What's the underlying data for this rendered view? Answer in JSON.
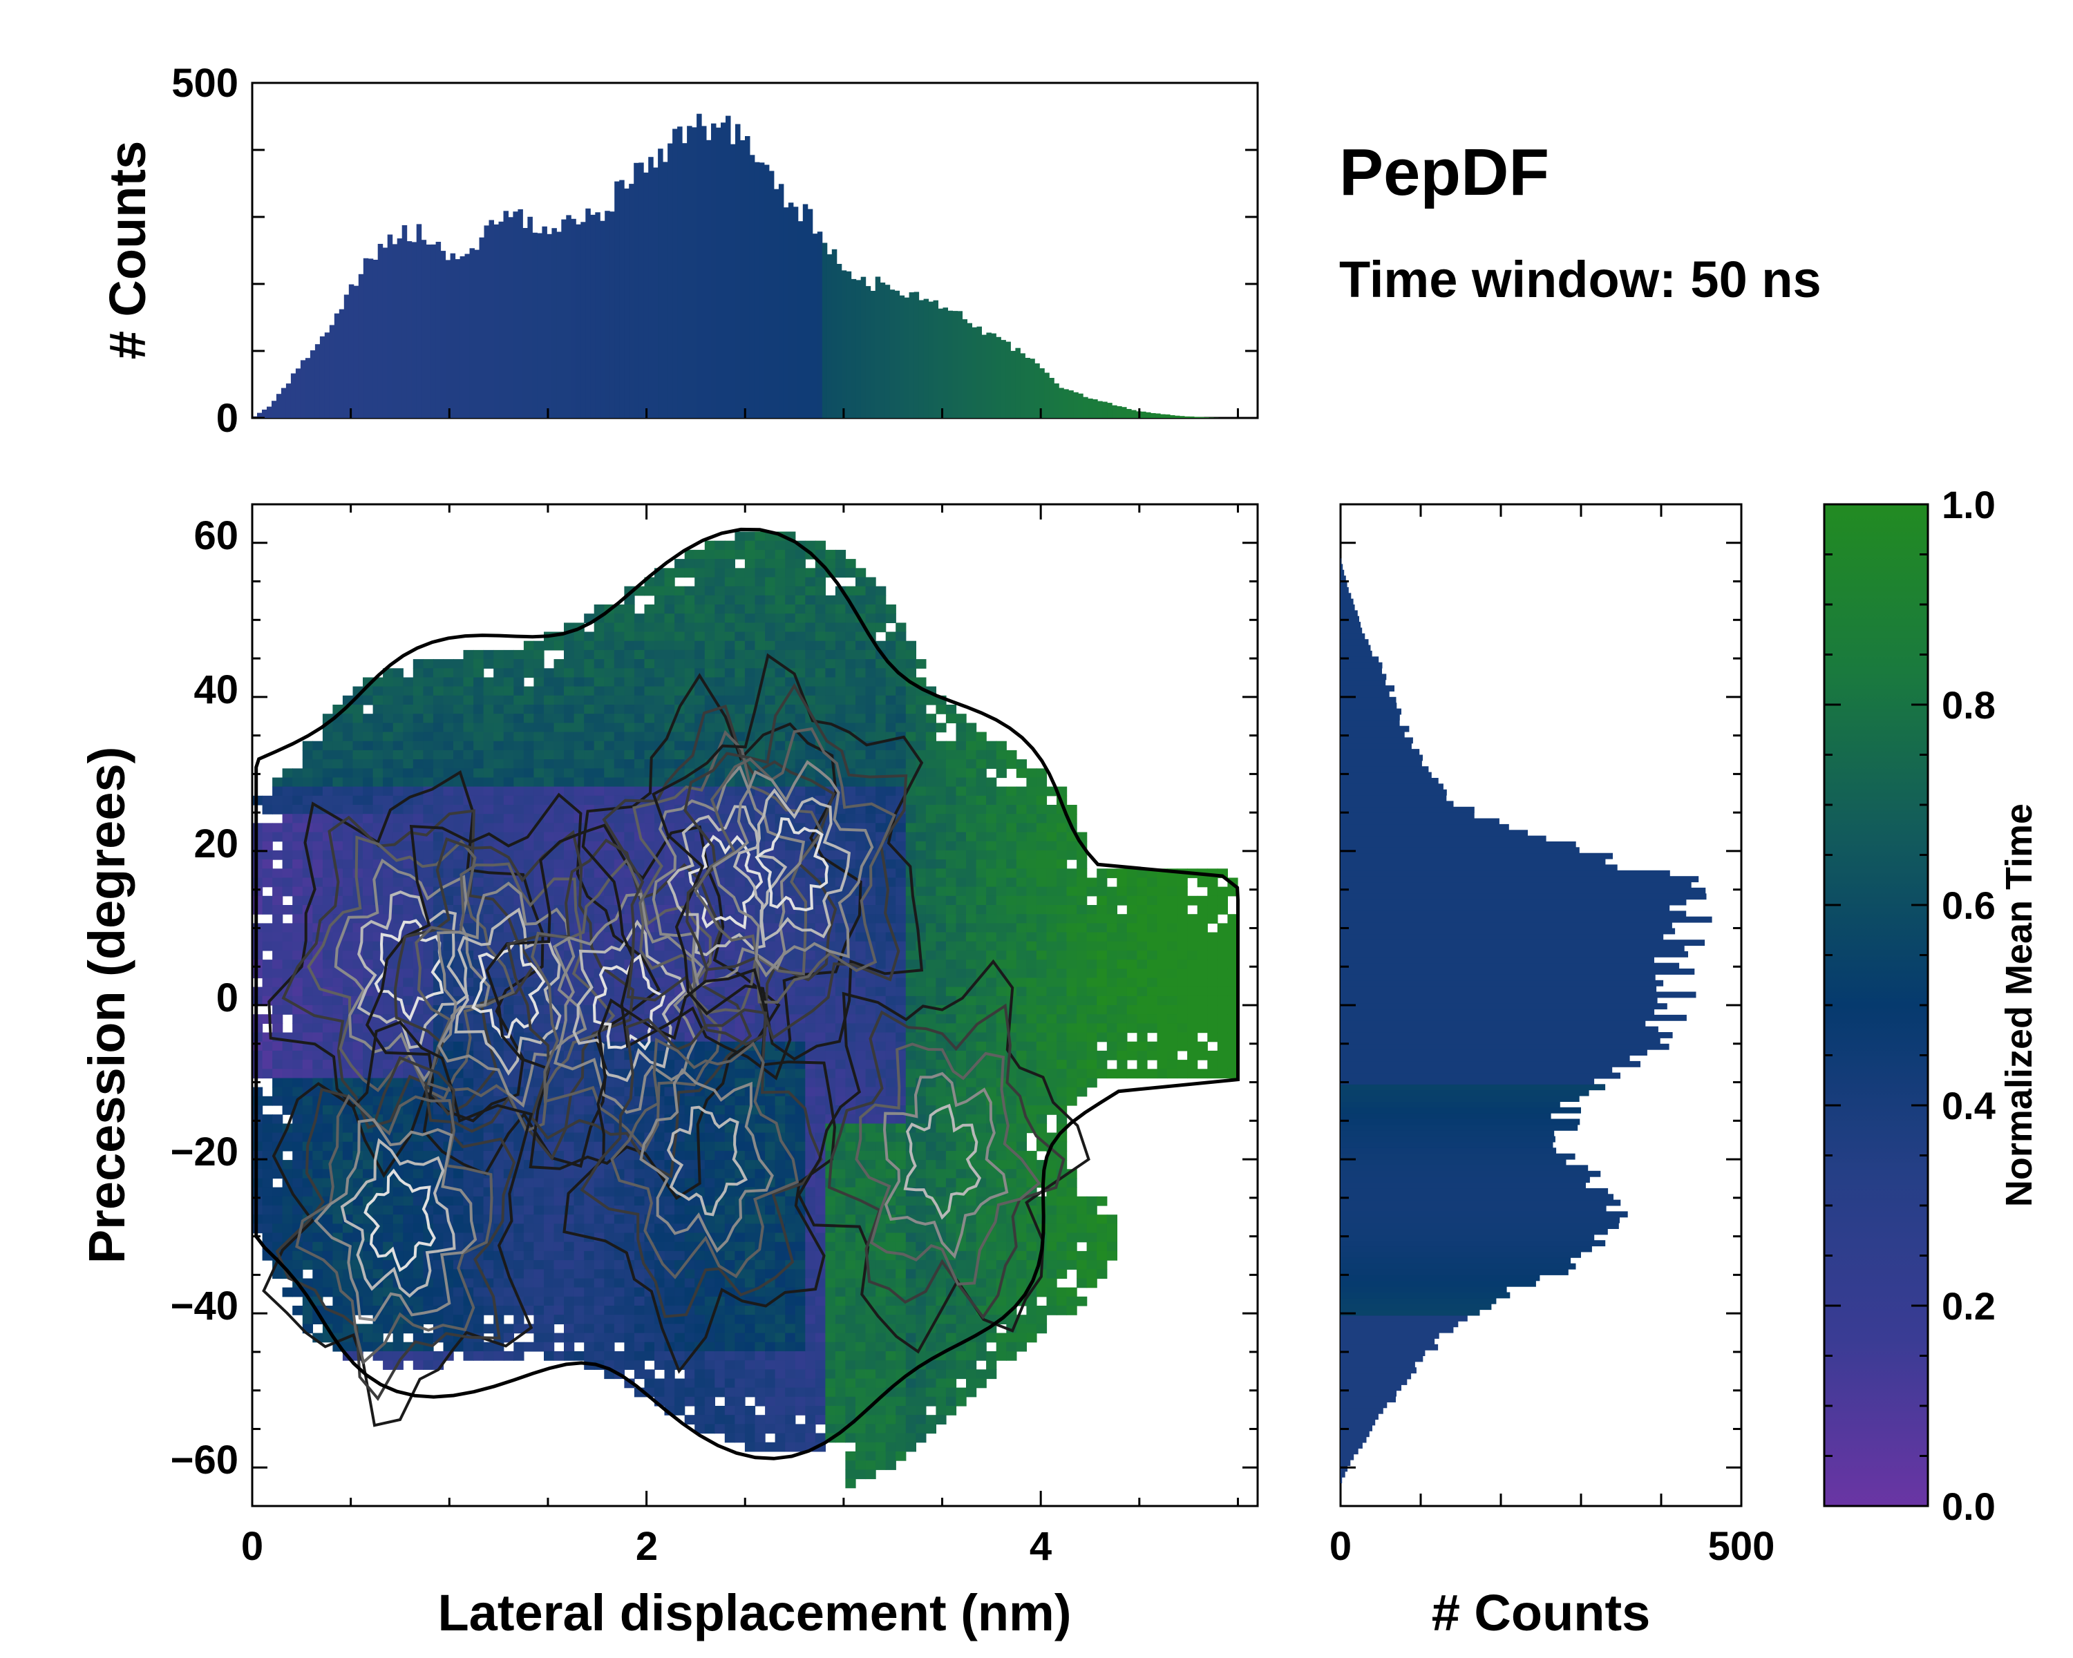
{
  "chart_data": {
    "type": "joint-heatmap",
    "title": "PepDF",
    "subtitle": "Time window: 50 ns",
    "colormap": {
      "name": "purple-blue-green",
      "stops": [
        "#6a35a4",
        "#3a3c94",
        "#253f86",
        "#063a6e",
        "#125a5c",
        "#1a7a3e",
        "#228b22"
      ]
    },
    "colorbar": {
      "label": "Normalized Mean Time",
      "range": [
        0.0,
        1.0
      ],
      "ticks": [
        "0.0",
        "0.2",
        "0.4",
        "0.6",
        "0.8",
        "1.0"
      ]
    },
    "main": {
      "xlabel": "Lateral displacement (nm)",
      "ylabel": "Precession (degrees)",
      "xlim": [
        0,
        5.1
      ],
      "ylim": [
        -65,
        65
      ],
      "xticks": [
        "0",
        "2",
        "4"
      ],
      "yticks": [
        "−60",
        "−40",
        "−20",
        "0",
        "20",
        "40",
        "60"
      ],
      "density_peaks": [
        {
          "x": 0.8,
          "y": 5,
          "weight": 0.9
        },
        {
          "x": 1.3,
          "y": 2,
          "weight": 1.0
        },
        {
          "x": 1.9,
          "y": 0,
          "weight": 0.85
        },
        {
          "x": 2.4,
          "y": 16,
          "weight": 0.95
        },
        {
          "x": 2.75,
          "y": 18,
          "weight": 0.9
        },
        {
          "x": 0.75,
          "y": -28,
          "weight": 0.9
        },
        {
          "x": 2.3,
          "y": -20,
          "weight": 0.8
        },
        {
          "x": 3.5,
          "y": -20,
          "weight": 0.6
        }
      ]
    },
    "top_histogram": {
      "ylabel": "# Counts",
      "ylim": [
        0,
        500
      ],
      "yticks": [
        "0",
        "500"
      ],
      "x_range": [
        0,
        4.9
      ],
      "profile": [
        {
          "x": 0.0,
          "y": 0
        },
        {
          "x": 0.1,
          "y": 20
        },
        {
          "x": 0.2,
          "y": 60
        },
        {
          "x": 0.4,
          "y": 140
        },
        {
          "x": 0.55,
          "y": 215
        },
        {
          "x": 0.65,
          "y": 255
        },
        {
          "x": 0.75,
          "y": 280
        },
        {
          "x": 0.9,
          "y": 270
        },
        {
          "x": 1.05,
          "y": 225
        },
        {
          "x": 1.15,
          "y": 265
        },
        {
          "x": 1.25,
          "y": 305
        },
        {
          "x": 1.4,
          "y": 295
        },
        {
          "x": 1.5,
          "y": 270
        },
        {
          "x": 1.65,
          "y": 300
        },
        {
          "x": 1.8,
          "y": 315
        },
        {
          "x": 1.95,
          "y": 370
        },
        {
          "x": 2.05,
          "y": 395
        },
        {
          "x": 2.15,
          "y": 410
        },
        {
          "x": 2.3,
          "y": 435
        },
        {
          "x": 2.45,
          "y": 425
        },
        {
          "x": 2.55,
          "y": 400
        },
        {
          "x": 2.7,
          "y": 330
        },
        {
          "x": 2.85,
          "y": 290
        },
        {
          "x": 2.95,
          "y": 240
        },
        {
          "x": 3.05,
          "y": 205
        },
        {
          "x": 3.2,
          "y": 200
        },
        {
          "x": 3.4,
          "y": 180
        },
        {
          "x": 3.6,
          "y": 150
        },
        {
          "x": 3.8,
          "y": 115
        },
        {
          "x": 3.95,
          "y": 90
        },
        {
          "x": 4.1,
          "y": 45
        },
        {
          "x": 4.3,
          "y": 25
        },
        {
          "x": 4.5,
          "y": 10
        },
        {
          "x": 4.7,
          "y": 3
        },
        {
          "x": 4.9,
          "y": 0
        }
      ]
    },
    "right_histogram": {
      "xlabel": "# Counts",
      "xlim": [
        0,
        500
      ],
      "xticks": [
        "0",
        "500"
      ],
      "y_range": [
        -62,
        58
      ],
      "profile": [
        {
          "y": -62,
          "x": 0
        },
        {
          "y": -58,
          "x": 20
        },
        {
          "y": -52,
          "x": 60
        },
        {
          "y": -46,
          "x": 100
        },
        {
          "y": -40,
          "x": 160
        },
        {
          "y": -34,
          "x": 280
        },
        {
          "y": -28,
          "x": 350
        },
        {
          "y": -23,
          "x": 320
        },
        {
          "y": -18,
          "x": 270
        },
        {
          "y": -12,
          "x": 290
        },
        {
          "y": -6,
          "x": 380
        },
        {
          "y": 0,
          "x": 420
        },
        {
          "y": 6,
          "x": 420
        },
        {
          "y": 12,
          "x": 440
        },
        {
          "y": 16,
          "x": 430
        },
        {
          "y": 20,
          "x": 300
        },
        {
          "y": 25,
          "x": 160
        },
        {
          "y": 30,
          "x": 110
        },
        {
          "y": 36,
          "x": 80
        },
        {
          "y": 42,
          "x": 60
        },
        {
          "y": 48,
          "x": 30
        },
        {
          "y": 54,
          "x": 10
        },
        {
          "y": 58,
          "x": 0
        }
      ]
    }
  }
}
